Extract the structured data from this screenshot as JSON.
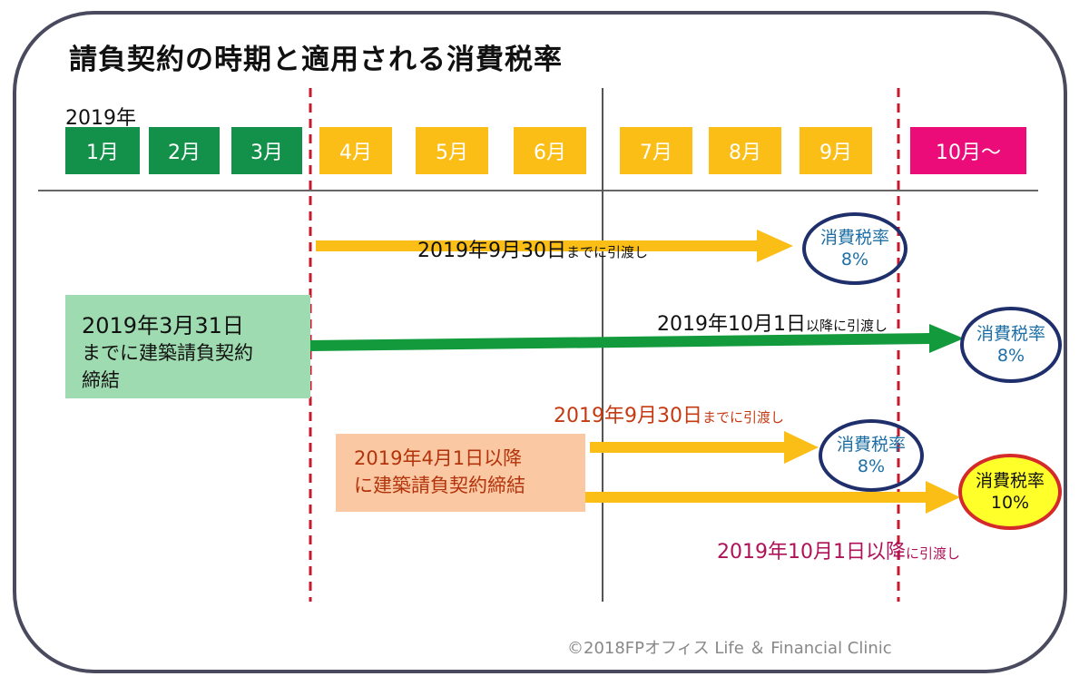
{
  "title": "請負契約の時期と適用される消費税率",
  "year_label": "2019年",
  "months": [
    {
      "label": "1月",
      "color": "#13914a"
    },
    {
      "label": "2月",
      "color": "#13914a"
    },
    {
      "label": "3月",
      "color": "#13914a"
    },
    {
      "label": "4月",
      "color": "#fbbe17"
    },
    {
      "label": "5月",
      "color": "#fbbe17"
    },
    {
      "label": "6月",
      "color": "#fbbe17"
    },
    {
      "label": "7月",
      "color": "#fbbe17"
    },
    {
      "label": "8月",
      "color": "#fbbe17"
    },
    {
      "label": "9月",
      "color": "#fbbe17"
    },
    {
      "label": "10月～",
      "color": "#eb0b79"
    }
  ],
  "contract_before": {
    "line1": "2019年3月31日",
    "line2": "までに建築請負契約",
    "line3": "締結"
  },
  "contract_after": {
    "line1": "2019年4月1日以降",
    "line2": "に建築請負契約締結"
  },
  "arrows": {
    "a1": {
      "main": "2019年9月30日",
      "suffix": "までに引渡し"
    },
    "a2": {
      "main": "2019年10月1日",
      "suffix": "以降に引渡し"
    },
    "a3": {
      "main": "2019年9月30日",
      "suffix": "までに引渡し"
    },
    "a4": {
      "main": "2019年10月1日以降",
      "suffix": "に引渡し"
    }
  },
  "rates": {
    "r1": {
      "label": "消費税率",
      "value": "8%"
    },
    "r2": {
      "label": "消費税率",
      "value": "8%"
    },
    "r3": {
      "label": "消費税率",
      "value": "8%"
    },
    "r4": {
      "label": "消費税率",
      "value": "10%"
    }
  },
  "colors": {
    "arrow_yellow": "#fbbe17",
    "arrow_green": "#139a3c",
    "dash_red": "#c8192c"
  },
  "copyright": "©2018FPオフィス Life ＆ Financial Clinic"
}
